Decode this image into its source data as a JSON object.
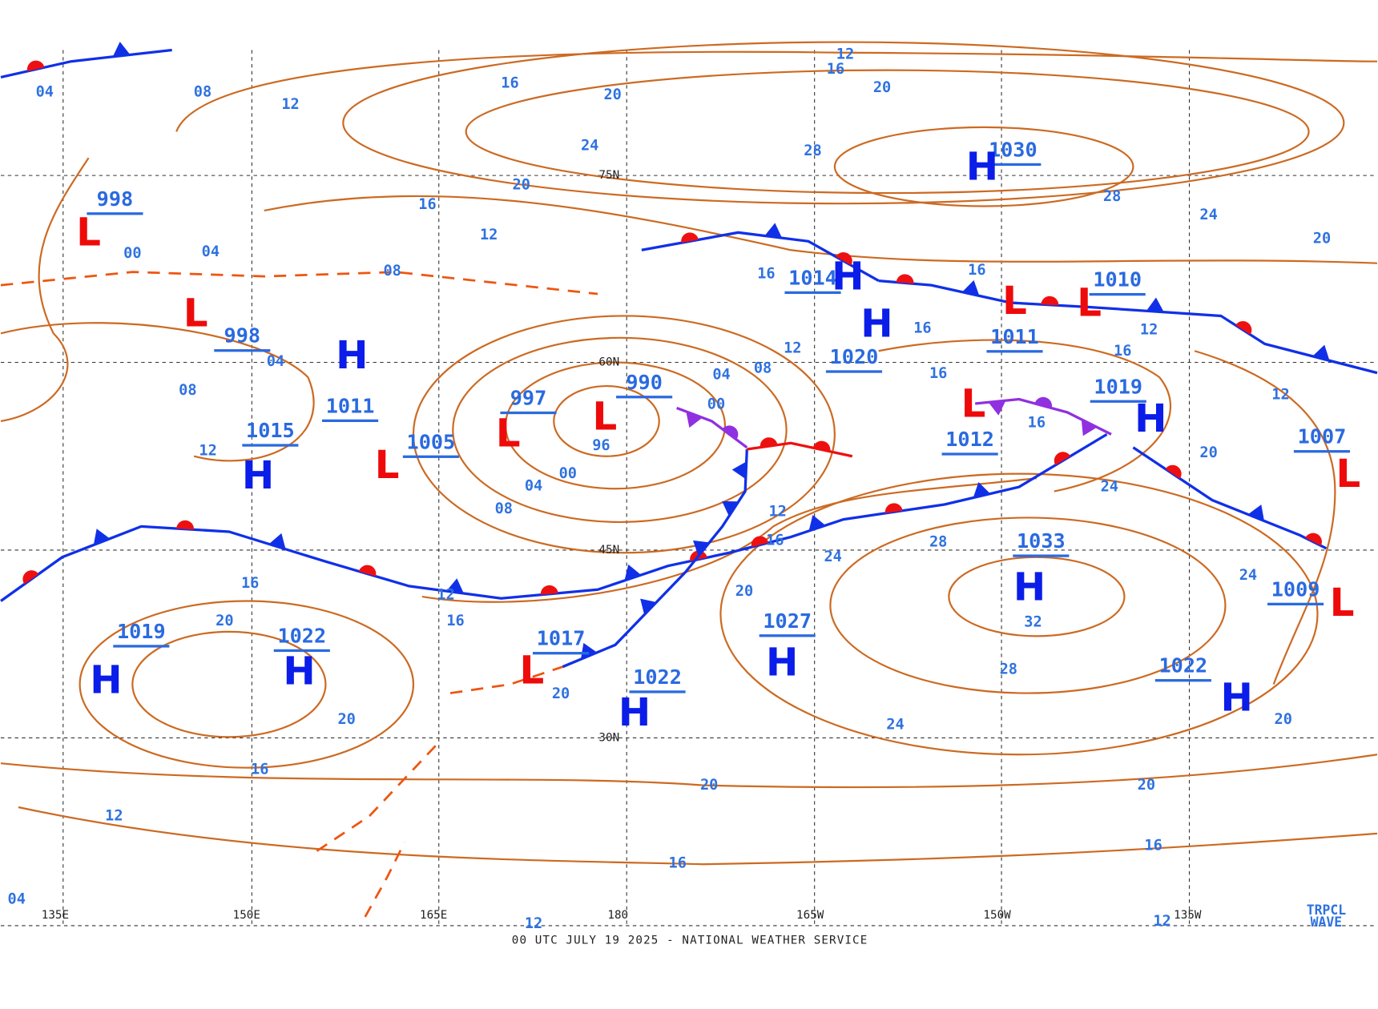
{
  "centers": [
    {
      "symbol": "L",
      "pressure": "998"
    },
    {
      "symbol": "L",
      "pressure": "998"
    },
    {
      "symbol": "H",
      "pressure": "1011"
    },
    {
      "symbol": "H",
      "pressure": "1015"
    },
    {
      "symbol": "L",
      "pressure": "1005"
    },
    {
      "symbol": "L",
      "pressure": "997"
    },
    {
      "symbol": "L",
      "pressure": "990"
    },
    {
      "symbol": "H",
      "pressure": "1014"
    },
    {
      "symbol": "H",
      "pressure": "1020"
    },
    {
      "symbol": "L",
      "pressure": "1011"
    },
    {
      "symbol": "L",
      "pressure": "1010"
    },
    {
      "symbol": "H",
      "pressure": "1030"
    },
    {
      "symbol": "H",
      "pressure": "1019"
    },
    {
      "symbol": "L",
      "pressure": "1012"
    },
    {
      "symbol": "H",
      "pressure": "1033"
    },
    {
      "symbol": "H",
      "pressure": "1027"
    },
    {
      "symbol": "H",
      "pressure": "1022"
    },
    {
      "symbol": "L",
      "pressure": "1017"
    },
    {
      "symbol": "H",
      "pressure": "1022"
    },
    {
      "symbol": "H",
      "pressure": "1019"
    },
    {
      "symbol": "H",
      "pressure": "1022"
    },
    {
      "symbol": "L",
      "pressure": "1009"
    },
    {
      "symbol": "L",
      "pressure": "1007"
    }
  ],
  "isobar_labels": [
    "04",
    "08",
    "12",
    "16",
    "20",
    "24",
    "28",
    "20",
    "16",
    "12",
    "28",
    "24",
    "20",
    "20",
    "16",
    "12",
    "00",
    "04",
    "08",
    "04",
    "08",
    "12",
    "16",
    "12",
    "08",
    "04",
    "00",
    "96",
    "00",
    "04",
    "08",
    "12",
    "16",
    "24",
    "28",
    "24",
    "20",
    "16",
    "16",
    "16",
    "12",
    "12",
    "16",
    "16",
    "20",
    "16",
    "12",
    "16",
    "20",
    "20",
    "32",
    "28",
    "24",
    "20",
    "16",
    "20",
    "20",
    "20",
    "24",
    "12",
    "16",
    "16",
    "04",
    "12",
    "12"
  ],
  "grid": {
    "longitudes": [
      "135E",
      "150E",
      "165E",
      "180",
      "165W",
      "150W",
      "135W"
    ],
    "latitudes": [
      "75N",
      "60N",
      "45N",
      "30N"
    ]
  },
  "tropical_wave": [
    "TRPCL",
    "WAVE"
  ],
  "footer": "00 UTC JULY 19 2025 - NATIONAL WEATHER SERVICE"
}
